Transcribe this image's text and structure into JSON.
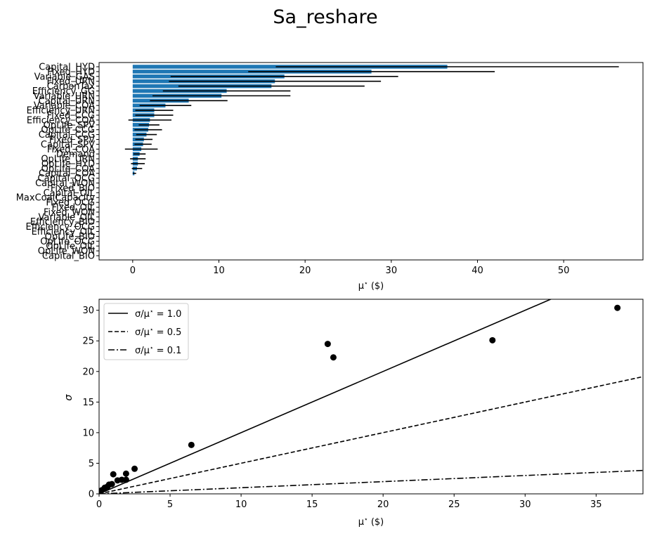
{
  "figure": {
    "title": "Sa_reshare"
  },
  "colors": {
    "bar": "#1f77b4",
    "error": "#000000",
    "scatter": "#000000",
    "axes": "#000000",
    "background": "#ffffff"
  },
  "chart_data": [
    {
      "type": "bar",
      "orientation": "horizontal",
      "title": "",
      "xlabel": "μ* ($)",
      "ylabel": "",
      "xlim": [
        -3.9,
        59.2
      ],
      "xticks": [
        0,
        10,
        20,
        30,
        40,
        50
      ],
      "grid": false,
      "categories": [
        "Capital_HYD",
        "Fixed_HYD",
        "Variable_GAS",
        "Fixed_URN",
        "CarbonTax",
        "Efficiency_GG",
        "Variable_URN",
        "Capital_URN",
        "Variable_COA",
        "Efficiency_URN",
        "Fixed_CCG",
        "Efficiency_COA",
        "OpLife_SPV",
        "OpLife_CCG",
        "Capital_CCG",
        "Fixed_SPV",
        "Capital_SPV",
        "Fixed_COA",
        "Demand",
        "OpLife_URN",
        "OpLife_HYD",
        "OpLife_COA",
        "Capital_COA",
        "Capital_OCG",
        "Capital_WON",
        "Fixed_BIO",
        "Capital_OIL",
        "MaxCoalCapacity",
        "Fixed_OCG",
        "Fixed_OIL",
        "Fixed_WON",
        "Variable_OIL",
        "Efficiency_BIO",
        "Efficiency_OCG",
        "Efficiency_OIL",
        "OpLife_BIO",
        "OpLife_OCG",
        "OpLife_OIL",
        "OpLife_WON",
        "Capital_BIO"
      ],
      "values": [
        36.5,
        27.7,
        17.6,
        16.5,
        16.1,
        10.9,
        10.3,
        6.5,
        3.8,
        2.5,
        2.5,
        2.0,
        1.9,
        1.8,
        1.6,
        1.3,
        1.2,
        1.0,
        0.8,
        0.6,
        0.6,
        0.5,
        0.2,
        0,
        0,
        0,
        0,
        0,
        0,
        0,
        0,
        0,
        0,
        0,
        0,
        0,
        0,
        0,
        0,
        0
      ],
      "errors": [
        19.9,
        14.3,
        13.2,
        12.3,
        10.8,
        7.4,
        8.0,
        4.5,
        3.0,
        2.2,
        2.2,
        2.5,
        1.2,
        1.6,
        1.2,
        1.0,
        1.0,
        1.9,
        0.7,
        0.9,
        0.8,
        0.6,
        0.2,
        0,
        0,
        0,
        0,
        0,
        0,
        0,
        0,
        0,
        0,
        0,
        0,
        0,
        0,
        0,
        0,
        0
      ]
    },
    {
      "type": "scatter",
      "title": "",
      "xlabel": "μ* ($)",
      "ylabel": "σ",
      "xlim": [
        0,
        38.3
      ],
      "ylim": [
        0,
        31.8
      ],
      "xticks": [
        0,
        5,
        10,
        15,
        20,
        25,
        30,
        35
      ],
      "yticks": [
        0,
        5,
        10,
        15,
        20,
        25,
        30
      ],
      "grid": false,
      "legend_position": "top-left",
      "points": {
        "x": [
          36.5,
          27.7,
          16.1,
          16.5,
          6.5,
          2.5,
          1.9,
          1.0,
          1.6,
          1.3,
          1.9,
          0.9,
          0.7,
          0.6,
          0.4,
          0.2,
          0.1,
          0.05
        ],
        "y": [
          30.4,
          25.1,
          24.5,
          22.3,
          8.0,
          4.1,
          3.3,
          3.2,
          2.3,
          2.2,
          2.3,
          1.6,
          1.5,
          1.2,
          1.0,
          0.6,
          0.4,
          0.2
        ]
      },
      "reference_lines": [
        {
          "label": "σ/μ* = 1.0",
          "ratio": 1.0,
          "dash": "solid"
        },
        {
          "label": "σ/μ* = 0.5",
          "ratio": 0.5,
          "dash": "dashed"
        },
        {
          "label": "σ/μ* = 0.1",
          "ratio": 0.1,
          "dash": "dashdot"
        }
      ]
    }
  ]
}
